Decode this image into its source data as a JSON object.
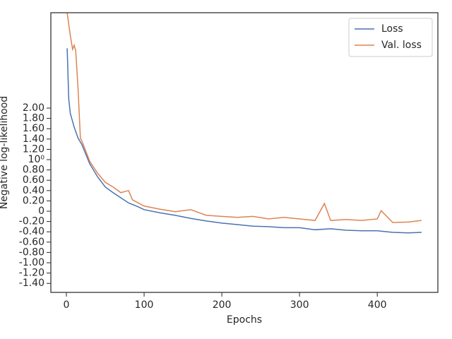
{
  "chart_data": {
    "type": "line",
    "xlabel": "Epochs",
    "ylabel": "Negative log-likelihood",
    "xlim": [
      -20,
      478
    ],
    "xticks": [
      0,
      100,
      200,
      300,
      400
    ],
    "ylim": [
      -1.575,
      3.85
    ],
    "yticks": [
      {
        "value": -1.4,
        "label": "-1.40"
      },
      {
        "value": -1.2,
        "label": "-1.20"
      },
      {
        "value": -1.0,
        "label": "-1.00"
      },
      {
        "value": -0.8,
        "label": "-0.80"
      },
      {
        "value": -0.6,
        "label": "-0.60"
      },
      {
        "value": -0.4,
        "label": "-0.40"
      },
      {
        "value": -0.2,
        "label": "-0.20"
      },
      0,
      {
        "value": 0.2,
        "label": "0.20"
      },
      {
        "value": 0.4,
        "label": "0.40"
      },
      {
        "value": 0.6,
        "label": "0.60"
      },
      {
        "value": 0.8,
        "label": "0.80"
      },
      {
        "value": 1,
        "label": "10⁰"
      },
      {
        "value": 1.2,
        "label": "1.20"
      },
      {
        "value": 1.4,
        "label": "1.40"
      },
      {
        "value": 1.6,
        "label": "1.60"
      },
      {
        "value": 1.8,
        "label": "1.80"
      },
      {
        "value": 2.0,
        "label": "2.00"
      }
    ],
    "legend": "upper right",
    "series": [
      {
        "name": "Loss",
        "color": "#4c72b0",
        "x": [
          1,
          3,
          5,
          10,
          15,
          20,
          30,
          40,
          50,
          60,
          70,
          80,
          90,
          100,
          120,
          140,
          160,
          180,
          200,
          220,
          240,
          260,
          280,
          300,
          320,
          340,
          360,
          380,
          400,
          420,
          440,
          457
        ],
        "values": [
          3.16,
          2.18,
          1.9,
          1.63,
          1.42,
          1.29,
          0.92,
          0.67,
          0.47,
          0.36,
          0.26,
          0.16,
          0.1,
          0.03,
          -0.03,
          -0.08,
          -0.14,
          -0.19,
          -0.23,
          -0.26,
          -0.29,
          -0.3,
          -0.32,
          -0.32,
          -0.36,
          -0.34,
          -0.37,
          -0.38,
          -0.38,
          -0.41,
          -0.42,
          -0.41
        ]
      },
      {
        "name": "Val. loss",
        "color": "#dd8452",
        "x": [
          1,
          5,
          8,
          10,
          12,
          15,
          18,
          20,
          30,
          40,
          50,
          60,
          70,
          80,
          85,
          100,
          120,
          140,
          160,
          180,
          200,
          220,
          240,
          260,
          280,
          300,
          320,
          332,
          340,
          360,
          380,
          400,
          405,
          420,
          440,
          457
        ],
        "values": [
          3.85,
          3.41,
          3.14,
          3.22,
          3.11,
          2.38,
          1.42,
          1.36,
          0.97,
          0.74,
          0.56,
          0.47,
          0.36,
          0.4,
          0.22,
          0.1,
          0.04,
          -0.01,
          0.03,
          -0.08,
          -0.1,
          -0.12,
          -0.1,
          -0.15,
          -0.12,
          -0.15,
          -0.18,
          0.15,
          -0.18,
          -0.16,
          -0.18,
          -0.15,
          0.01,
          -0.22,
          -0.21,
          -0.18
        ]
      }
    ]
  }
}
